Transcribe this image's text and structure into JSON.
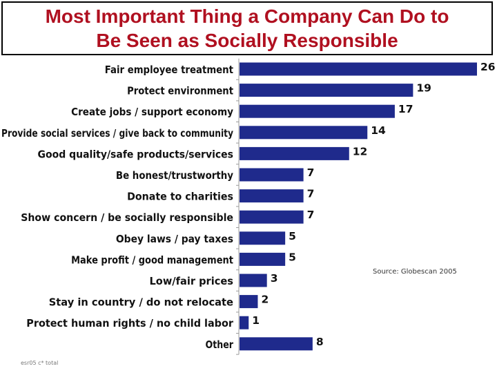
{
  "title": {
    "line1": "Most Important Thing a Company Can Do to",
    "line2": "Be Seen as Socially Responsible"
  },
  "source": "Source:  Globescan 2005",
  "footnote": "esr05  c*  total",
  "colors": {
    "bar": "#1f2a8c",
    "title": "#b01020",
    "text": "#111111"
  },
  "chart_data": {
    "type": "bar",
    "orientation": "horizontal",
    "categories": [
      "Fair employee treatment",
      "Protect environment",
      "Create jobs / support economy",
      "Provide social services / give back to community",
      "Good quality/safe products/services",
      "Be honest/trustworthy",
      "Donate to charities",
      "Show concern / be socially responsible",
      "Obey laws / pay taxes",
      "Make profit / good management",
      "Low/fair prices",
      "Stay in country / do not relocate",
      "Protect human rights / no child labor",
      "Other"
    ],
    "values": [
      26,
      19,
      17,
      14,
      12,
      7,
      7,
      7,
      5,
      5,
      3,
      2,
      1,
      8
    ],
    "title": "Most Important Thing a Company Can Do to Be Seen as Socially Responsible",
    "xlabel": "",
    "ylabel": "",
    "xlim": [
      0,
      26
    ],
    "grid": false,
    "legend": "none"
  }
}
